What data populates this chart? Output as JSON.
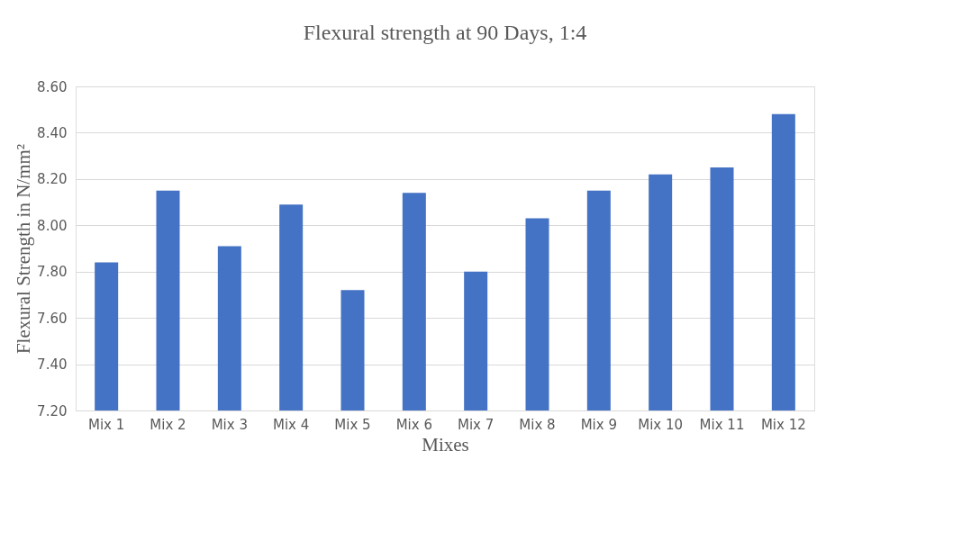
{
  "chart_data": {
    "type": "bar",
    "title": "Flexural strength at 90 Days, 1:4",
    "xlabel": "Mixes",
    "ylabel": "Flexural Strength in N/mm²",
    "categories": [
      "Mix 1",
      "Mix 2",
      "Mix 3",
      "Mix 4",
      "Mix 5",
      "Mix 6",
      "Mix 7",
      "Mix 8",
      "Mix 9",
      "Mix 10",
      "Mix 11",
      "Mix 12"
    ],
    "values": [
      7.84,
      8.15,
      7.91,
      8.09,
      7.72,
      8.14,
      7.8,
      8.03,
      8.15,
      8.22,
      8.25,
      8.48
    ],
    "color": "#4472c4",
    "ylim": [
      7.2,
      8.6
    ],
    "yticks": [
      {
        "value": 7.2,
        "label": "7.20"
      },
      {
        "value": 7.4,
        "label": "7.40"
      },
      {
        "value": 7.6,
        "label": "7.60"
      },
      {
        "value": 7.8,
        "label": "7.80"
      },
      {
        "value": 8.0,
        "label": "8.00"
      },
      {
        "value": 8.2,
        "label": "8.20"
      },
      {
        "value": 8.4,
        "label": "8.40"
      },
      {
        "value": 8.6,
        "label": "8.60"
      }
    ],
    "grid": "y"
  }
}
